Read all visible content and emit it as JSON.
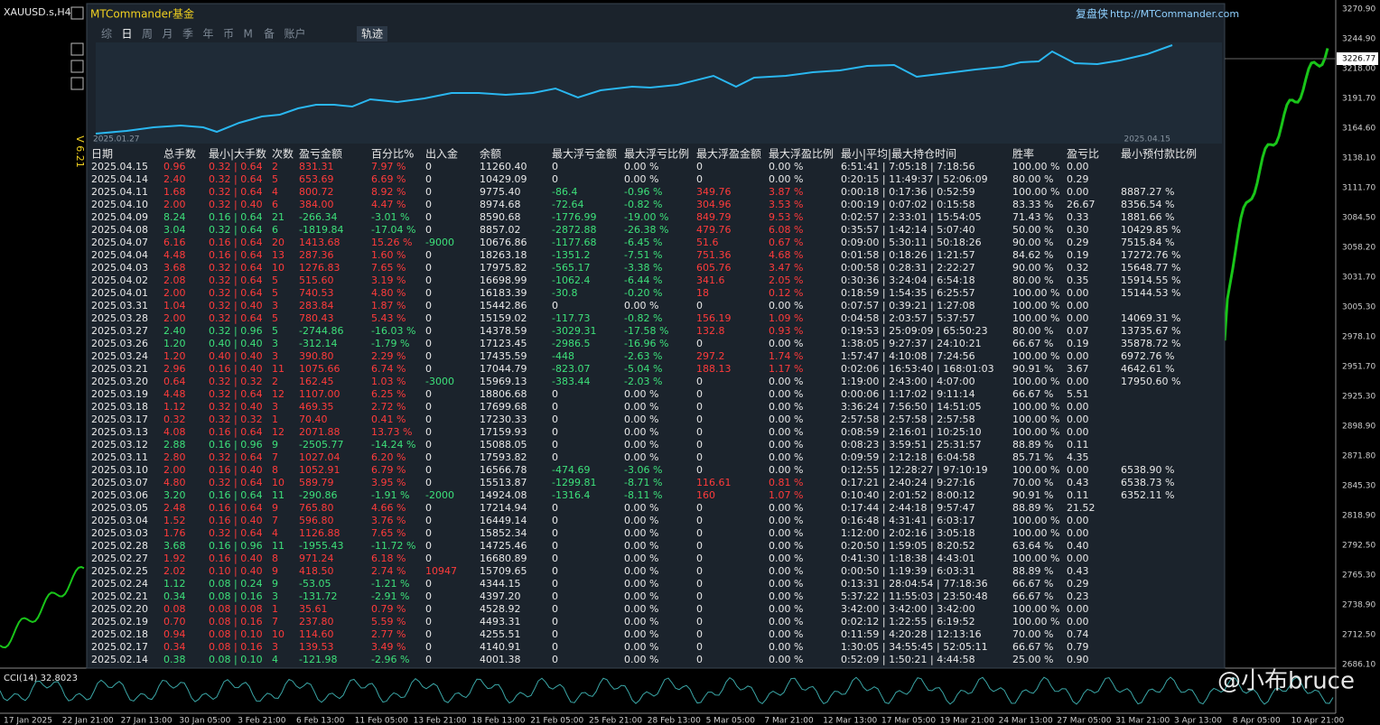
{
  "header": {
    "symbol": "XAUUSD.s,H4",
    "brand": "MTCommander基金",
    "version": "V 6.21",
    "site_label": "复盘侠",
    "site_url": "http://MTCommander.com",
    "tabs": [
      "综",
      "日",
      "周",
      "月",
      "季",
      "年",
      "币",
      "M",
      "备",
      "账户"
    ],
    "track_tab": "轨迹"
  },
  "equity_chart": {
    "start": "2025.01.27",
    "end": "2025.04.15"
  },
  "table": {
    "columns": [
      "日期",
      "总手数",
      "最小|大手数",
      "次数",
      "盈亏金额",
      "百分比%",
      "出入金",
      "余额",
      "最大浮亏金额",
      "最大浮亏比例",
      "最大浮盈金额",
      "最大浮盈比例",
      "最小|平均|最大持仓时间",
      "胜率",
      "盈亏比",
      "最小预付款比例"
    ],
    "rows": [
      [
        "2025.04.15",
        "0.96",
        "0.32 | 0.64",
        "2",
        "831.31",
        "7.97 %",
        "0",
        "11260.40",
        "0",
        "0.00 %",
        "0",
        "0.00 %",
        "6:51:41 | 7:05:18 | 7:18:56",
        "100.00 %",
        "0.00",
        null
      ],
      [
        "2025.04.14",
        "2.40",
        "0.32 | 0.64",
        "5",
        "653.69",
        "6.69 %",
        "0",
        "10429.09",
        "0",
        "0.00 %",
        "0",
        "0.00 %",
        "0:20:15 | 11:49:37 | 52:06:09",
        "80.00 %",
        "0.29",
        null
      ],
      [
        "2025.04.11",
        "1.68",
        "0.32 | 0.64",
        "4",
        "800.72",
        "8.92 %",
        "0",
        "9775.40",
        "-86.4",
        "-0.96 %",
        "349.76",
        "3.87 %",
        "0:00:18 | 0:17:36 | 0:52:59",
        "100.00 %",
        "0.00",
        "8887.27 %"
      ],
      [
        "2025.04.10",
        "2.00",
        "0.32 | 0.40",
        "6",
        "384.00",
        "4.47 %",
        "0",
        "8974.68",
        "-72.64",
        "-0.82 %",
        "304.96",
        "3.53 %",
        "0:00:19 | 0:07:02 | 0:15:58",
        "83.33 %",
        "26.67",
        "8356.54 %"
      ],
      [
        "2025.04.09",
        "8.24",
        "0.16 | 0.64",
        "21",
        "-266.34",
        "-3.01 %",
        "0",
        "8590.68",
        "-1776.99",
        "-19.00 %",
        "849.79",
        "9.53 %",
        "0:02:57 | 2:33:01 | 15:54:05",
        "71.43 %",
        "0.33",
        "1881.66 %"
      ],
      [
        "2025.04.08",
        "3.04",
        "0.32 | 0.64",
        "6",
        "-1819.84",
        "-17.04 %",
        "0",
        "8857.02",
        "-2872.88",
        "-26.38 %",
        "479.76",
        "6.08 %",
        "0:35:57 | 1:42:14 | 5:07:40",
        "50.00 %",
        "0.30",
        "10429.85 %"
      ],
      [
        "2025.04.07",
        "6.16",
        "0.16 | 0.64",
        "20",
        "1413.68",
        "15.26 %",
        "-9000",
        "10676.86",
        "-1177.68",
        "-6.45 %",
        "51.6",
        "0.67 %",
        "0:09:00 | 5:30:11 | 50:18:26",
        "90.00 %",
        "0.29",
        "7515.84 %"
      ],
      [
        "2025.04.04",
        "4.48",
        "0.16 | 0.64",
        "13",
        "287.36",
        "1.60 %",
        "0",
        "18263.18",
        "-1351.2",
        "-7.51 %",
        "751.36",
        "4.68 %",
        "0:01:58 | 0:18:26 | 1:21:57",
        "84.62 %",
        "0.19",
        "17272.76 %"
      ],
      [
        "2025.04.03",
        "3.68",
        "0.32 | 0.64",
        "10",
        "1276.83",
        "7.65 %",
        "0",
        "17975.82",
        "-565.17",
        "-3.38 %",
        "605.76",
        "3.47 %",
        "0:00:58 | 0:28:31 | 2:22:27",
        "90.00 %",
        "0.32",
        "15648.77 %"
      ],
      [
        "2025.04.02",
        "2.08",
        "0.32 | 0.64",
        "5",
        "515.60",
        "3.19 %",
        "0",
        "16698.99",
        "-1062.4",
        "-6.44 %",
        "341.6",
        "2.05 %",
        "0:30:36 | 3:24:04 | 6:54:18",
        "80.00 %",
        "0.35",
        "15914.55 %"
      ],
      [
        "2025.04.01",
        "2.00",
        "0.32 | 0.64",
        "5",
        "740.53",
        "4.80 %",
        "0",
        "16183.39",
        "-30.8",
        "-0.20 %",
        "18",
        "0.12 %",
        "0:18:59 | 1:54:35 | 6:25:57",
        "100.00 %",
        "0.00",
        "15144.53 %"
      ],
      [
        "2025.03.31",
        "1.04",
        "0.32 | 0.40",
        "3",
        "283.84",
        "1.87 %",
        "0",
        "15442.86",
        "0",
        "0.00 %",
        "0",
        "0.00 %",
        "0:07:57 | 0:39:21 | 1:27:08",
        "100.00 %",
        "0.00",
        null
      ],
      [
        "2025.03.28",
        "2.00",
        "0.32 | 0.64",
        "5",
        "780.43",
        "5.43 %",
        "0",
        "15159.02",
        "-117.73",
        "-0.82 %",
        "156.19",
        "1.09 %",
        "0:04:58 | 2:03:57 | 5:37:57",
        "100.00 %",
        "0.00",
        "14069.31 %"
      ],
      [
        "2025.03.27",
        "2.40",
        "0.32 | 0.96",
        "5",
        "-2744.86",
        "-16.03 %",
        "0",
        "14378.59",
        "-3029.31",
        "-17.58 %",
        "132.8",
        "0.93 %",
        "0:19:53 | 25:09:09 | 65:50:23",
        "80.00 %",
        "0.07",
        "13735.67 %"
      ],
      [
        "2025.03.26",
        "1.20",
        "0.40 | 0.40",
        "3",
        "-312.14",
        "-1.79 %",
        "0",
        "17123.45",
        "-2986.5",
        "-16.96 %",
        "0",
        "0.00 %",
        "1:38:05 | 9:27:37 | 24:10:21",
        "66.67 %",
        "0.19",
        "35878.72 %"
      ],
      [
        "2025.03.24",
        "1.20",
        "0.40 | 0.40",
        "3",
        "390.80",
        "2.29 %",
        "0",
        "17435.59",
        "-448",
        "-2.63 %",
        "297.2",
        "1.74 %",
        "1:57:47 | 4:10:08 | 7:24:56",
        "100.00 %",
        "0.00",
        "6972.76 %"
      ],
      [
        "2025.03.21",
        "2.96",
        "0.16 | 0.40",
        "11",
        "1075.66",
        "6.74 %",
        "0",
        "17044.79",
        "-823.07",
        "-5.04 %",
        "188.13",
        "1.17 %",
        "0:02:06 | 16:53:40 | 168:01:03",
        "90.91 %",
        "3.67",
        "4642.61 %"
      ],
      [
        "2025.03.20",
        "0.64",
        "0.32 | 0.32",
        "2",
        "162.45",
        "1.03 %",
        "-3000",
        "15969.13",
        "-383.44",
        "-2.03 %",
        "0",
        "0.00 %",
        "1:19:00 | 2:43:00 | 4:07:00",
        "100.00 %",
        "0.00",
        "17950.60 %"
      ],
      [
        "2025.03.19",
        "4.48",
        "0.32 | 0.64",
        "12",
        "1107.00",
        "6.25 %",
        "0",
        "18806.68",
        "0",
        "0.00 %",
        "0",
        "0.00 %",
        "0:00:06 | 1:17:02 | 9:11:14",
        "66.67 %",
        "5.51",
        null
      ],
      [
        "2025.03.18",
        "1.12",
        "0.32 | 0.40",
        "3",
        "469.35",
        "2.72 %",
        "0",
        "17699.68",
        "0",
        "0.00 %",
        "0",
        "0.00 %",
        "3:36:24 | 7:56:50 | 14:51:05",
        "100.00 %",
        "0.00",
        null
      ],
      [
        "2025.03.17",
        "0.32",
        "0.32 | 0.32",
        "1",
        "70.40",
        "0.41 %",
        "0",
        "17230.33",
        "0",
        "0.00 %",
        "0",
        "0.00 %",
        "2:57:58 | 2:57:58 | 2:57:58",
        "100.00 %",
        "0.00",
        null
      ],
      [
        "2025.03.13",
        "4.08",
        "0.16 | 0.64",
        "12",
        "2071.88",
        "13.73 %",
        "0",
        "17159.93",
        "0",
        "0.00 %",
        "0",
        "0.00 %",
        "0:08:59 | 2:16:01 | 10:25:10",
        "100.00 %",
        "0.00",
        null
      ],
      [
        "2025.03.12",
        "2.88",
        "0.16 | 0.96",
        "9",
        "-2505.77",
        "-14.24 %",
        "0",
        "15088.05",
        "0",
        "0.00 %",
        "0",
        "0.00 %",
        "0:08:23 | 3:59:51 | 25:31:57",
        "88.89 %",
        "0.11",
        null
      ],
      [
        "2025.03.11",
        "2.80",
        "0.32 | 0.64",
        "7",
        "1027.04",
        "6.20 %",
        "0",
        "17593.82",
        "0",
        "0.00 %",
        "0",
        "0.00 %",
        "0:09:59 | 2:12:18 | 6:04:58",
        "85.71 %",
        "4.35",
        null
      ],
      [
        "2025.03.10",
        "2.00",
        "0.16 | 0.40",
        "8",
        "1052.91",
        "6.79 %",
        "0",
        "16566.78",
        "-474.69",
        "-3.06 %",
        "0",
        "0.00 %",
        "0:12:55 | 12:28:27 | 97:10:19",
        "100.00 %",
        "0.00",
        "6538.90 %"
      ],
      [
        "2025.03.07",
        "4.80",
        "0.32 | 0.64",
        "10",
        "589.79",
        "3.95 %",
        "0",
        "15513.87",
        "-1299.81",
        "-8.71 %",
        "116.61",
        "0.81 %",
        "0:17:21 | 2:40:24 | 9:27:16",
        "70.00 %",
        "0.43",
        "6538.73 %"
      ],
      [
        "2025.03.06",
        "3.20",
        "0.16 | 0.64",
        "11",
        "-290.86",
        "-1.91 %",
        "-2000",
        "14924.08",
        "-1316.4",
        "-8.11 %",
        "160",
        "1.07 %",
        "0:10:40 | 2:01:52 | 8:00:12",
        "90.91 %",
        "0.11",
        "6352.11 %"
      ],
      [
        "2025.03.05",
        "2.48",
        "0.16 | 0.64",
        "9",
        "765.80",
        "4.66 %",
        "0",
        "17214.94",
        "0",
        "0.00 %",
        "0",
        "0.00 %",
        "0:17:44 | 2:44:18 | 9:57:47",
        "88.89 %",
        "21.52",
        null
      ],
      [
        "2025.03.04",
        "1.52",
        "0.16 | 0.40",
        "7",
        "596.80",
        "3.76 %",
        "0",
        "16449.14",
        "0",
        "0.00 %",
        "0",
        "0.00 %",
        "0:16:48 | 4:31:41 | 6:03:17",
        "100.00 %",
        "0.00",
        null
      ],
      [
        "2025.03.03",
        "1.76",
        "0.32 | 0.64",
        "4",
        "1126.88",
        "7.65 %",
        "0",
        "15852.34",
        "0",
        "0.00 %",
        "0",
        "0.00 %",
        "1:12:00 | 2:02:16 | 3:05:18",
        "100.00 %",
        "0.00",
        null
      ],
      [
        "2025.02.28",
        "3.68",
        "0.16 | 0.96",
        "11",
        "-1955.43",
        "-11.72 %",
        "0",
        "14725.46",
        "0",
        "0.00 %",
        "0",
        "0.00 %",
        "0:20:50 | 1:59:05 | 8:20:52",
        "63.64 %",
        "0.40",
        null
      ],
      [
        "2025.02.27",
        "1.92",
        "0.16 | 0.40",
        "8",
        "971.24",
        "6.18 %",
        "0",
        "16680.89",
        "0",
        "0.00 %",
        "0",
        "0.00 %",
        "0:41:30 | 1:18:38 | 4:43:01",
        "100.00 %",
        "0.00",
        null
      ],
      [
        "2025.02.25",
        "2.02",
        "0.10 | 0.40",
        "9",
        "418.50",
        "2.74 %",
        "10947",
        "15709.65",
        "0",
        "0.00 %",
        "0",
        "0.00 %",
        "0:00:50 | 1:19:39 | 6:03:31",
        "88.89 %",
        "0.43",
        null
      ],
      [
        "2025.02.24",
        "1.12",
        "0.08 | 0.24",
        "9",
        "-53.05",
        "-1.21 %",
        "0",
        "4344.15",
        "0",
        "0.00 %",
        "0",
        "0.00 %",
        "0:13:31 | 28:04:54 | 77:18:36",
        "66.67 %",
        "0.29",
        null
      ],
      [
        "2025.02.21",
        "0.34",
        "0.08 | 0.16",
        "3",
        "-131.72",
        "-2.91 %",
        "0",
        "4397.20",
        "0",
        "0.00 %",
        "0",
        "0.00 %",
        "5:37:22 | 11:55:03 | 23:50:48",
        "66.67 %",
        "0.23",
        null
      ],
      [
        "2025.02.20",
        "0.08",
        "0.08 | 0.08",
        "1",
        "35.61",
        "0.79 %",
        "0",
        "4528.92",
        "0",
        "0.00 %",
        "0",
        "0.00 %",
        "3:42:00 | 3:42:00 | 3:42:00",
        "100.00 %",
        "0.00",
        null
      ],
      [
        "2025.02.19",
        "0.70",
        "0.08 | 0.16",
        "7",
        "237.80",
        "5.59 %",
        "0",
        "4493.31",
        "0",
        "0.00 %",
        "0",
        "0.00 %",
        "0:02:12 | 1:22:55 | 6:19:52",
        "100.00 %",
        "0.00",
        null
      ],
      [
        "2025.02.18",
        "0.94",
        "0.08 | 0.10",
        "10",
        "114.60",
        "2.77 %",
        "0",
        "4255.51",
        "0",
        "0.00 %",
        "0",
        "0.00 %",
        "0:11:59 | 4:20:28 | 12:13:16",
        "70.00 %",
        "0.74",
        null
      ],
      [
        "2025.02.17",
        "0.34",
        "0.08 | 0.16",
        "3",
        "139.53",
        "3.49 %",
        "0",
        "4140.91",
        "0",
        "0.00 %",
        "0",
        "0.00 %",
        "1:30:05 | 34:55:45 | 52:05:11",
        "66.67 %",
        "0.79",
        null
      ],
      [
        "2025.02.14",
        "0.38",
        "0.08 | 0.10",
        "4",
        "-121.98",
        "-2.96 %",
        "0",
        "4001.38",
        "0",
        "0.00 %",
        "0",
        "0.00 %",
        "0:52:09 | 1:50:21 | 4:44:58",
        "25.00 %",
        "0.90",
        null
      ]
    ]
  },
  "price_axis": {
    "labels": [
      "3270.90",
      "3244.90",
      "3218.00",
      "3191.70",
      "3164.60",
      "3138.10",
      "3111.70",
      "3084.50",
      "3058.20",
      "3031.70",
      "3005.30",
      "2978.10",
      "2951.70",
      "2925.30",
      "2898.90",
      "2871.80",
      "2845.30",
      "2818.90",
      "2792.50",
      "2765.30",
      "2738.90",
      "2712.50",
      "2686.10"
    ],
    "current": "3226.77"
  },
  "time_axis": [
    "17 Jan 2025",
    "22 Jan 21:00",
    "27 Jan 13:00",
    "30 Jan 05:00",
    "3 Feb 21:00",
    "6 Feb 13:00",
    "11 Feb 05:00",
    "13 Feb 21:00",
    "18 Feb 13:00",
    "21 Feb 05:00",
    "25 Feb 21:00",
    "28 Feb 13:00",
    "5 Mar 05:00",
    "7 Mar 21:00",
    "12 Mar 13:00",
    "17 Mar 05:00",
    "19 Mar 21:00",
    "24 Mar 13:00",
    "27 Mar 05:00",
    "31 Mar 21:00",
    "3 Apr 13:00",
    "8 Apr 05:00",
    "10 Apr 21:00"
  ],
  "indicator": "CCI(14) 32.8023",
  "watermark": "@小布bruce"
}
